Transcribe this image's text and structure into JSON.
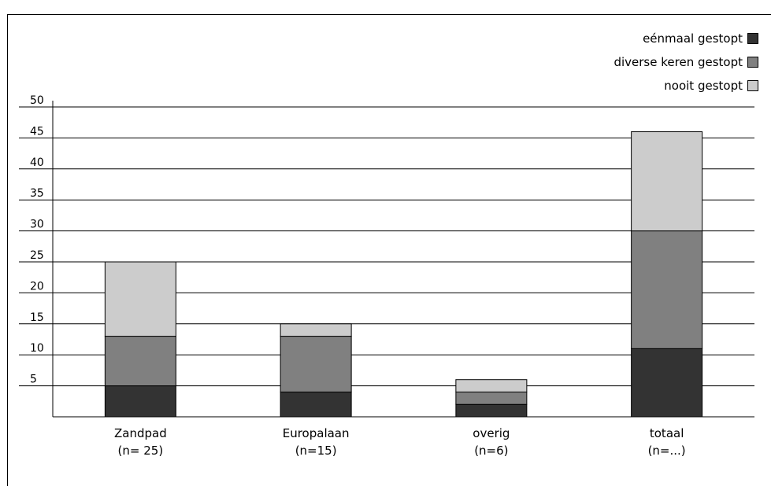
{
  "title": "",
  "chart_data": {
    "type": "bar",
    "stacked": true,
    "categories": [
      "Zandpad",
      "Europalaan",
      "overig",
      "totaal"
    ],
    "category_sublabels": [
      "(n= 25)",
      "(n=15)",
      "(n=6)",
      "(n=...)"
    ],
    "series": [
      {
        "name": "eénmaal gestopt",
        "color": "#333333",
        "values": [
          5,
          4,
          2,
          11
        ]
      },
      {
        "name": "diverse keren gestopt",
        "color": "#808080",
        "values": [
          8,
          9,
          2,
          19
        ]
      },
      {
        "name": "nooit gestopt",
        "color": "#cccccc",
        "values": [
          12,
          2,
          2,
          16
        ]
      }
    ],
    "ylim": [
      0,
      50
    ],
    "yticks": [
      5,
      10,
      15,
      20,
      25,
      30,
      35,
      40,
      45,
      50
    ],
    "grid": true,
    "legend_position": "top-right",
    "xlabel": "",
    "ylabel": ""
  }
}
